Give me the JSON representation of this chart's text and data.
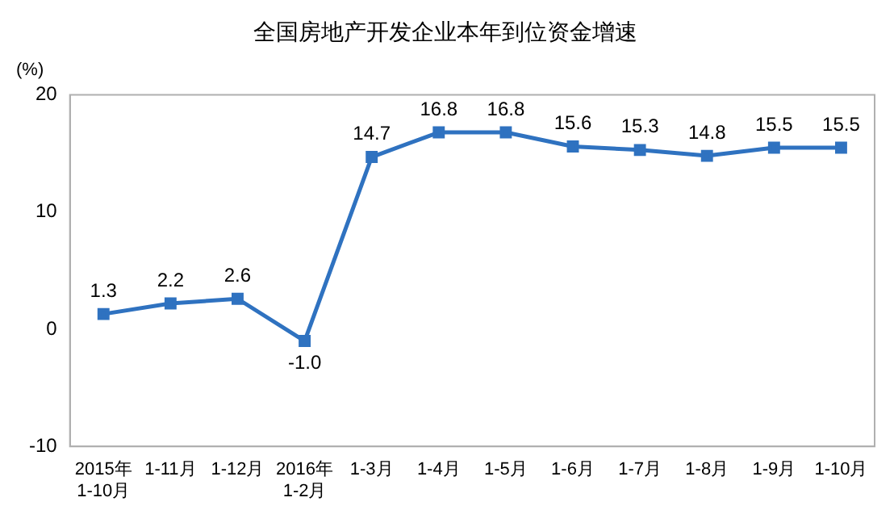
{
  "chart_data": {
    "type": "line",
    "title": "全国房地产开发企业本年到位资金增速",
    "ylabel": "(%)",
    "categories": [
      "2015年\n1-10月",
      "1-11月",
      "1-12月",
      "2016年\n1-2月",
      "1-3月",
      "1-4月",
      "1-5月",
      "1-6月",
      "1-7月",
      "1-8月",
      "1-9月",
      "1-10月"
    ],
    "series": [
      {
        "color": "#2f72c0",
        "values": [
          1.3,
          2.2,
          2.6,
          -1.0,
          14.7,
          16.8,
          16.8,
          15.6,
          15.3,
          14.8,
          15.5,
          15.5
        ],
        "value_labels": [
          "1.3",
          "2.2",
          "2.6",
          "-1.0",
          "14.7",
          "16.8",
          "16.8",
          "15.6",
          "15.3",
          "14.8",
          "15.5",
          "15.5"
        ]
      }
    ],
    "ylim": [
      -10,
      20
    ],
    "yticks": [
      -10,
      0,
      10,
      20
    ],
    "grid": false,
    "legend": false,
    "marker": "square",
    "line_style": "solid"
  }
}
